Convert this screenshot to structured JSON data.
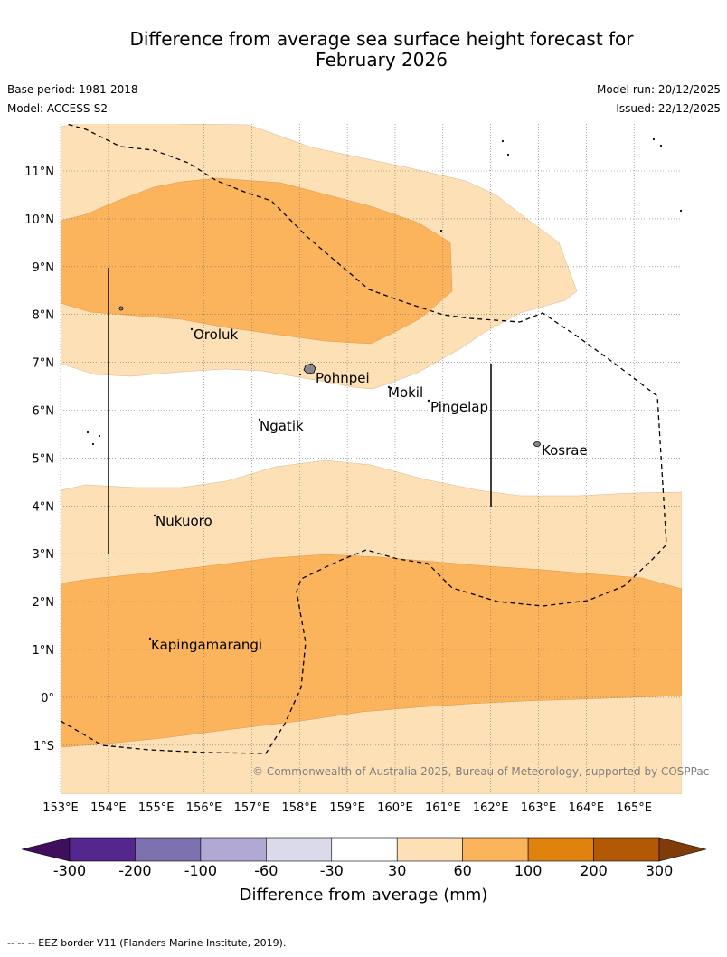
{
  "title_line1": "Difference from average sea surface height forecast for",
  "title_line2": "February 2026",
  "base_period": "Base period: 1981-2018",
  "model": "Model: ACCESS-S2",
  "model_run": "Model run: 20/12/2025",
  "issued": "Issued: 22/12/2025",
  "copyright": "© Commonwealth of Australia 2025, Bureau of Meteorology, supported by COSPPac",
  "lat_labels": [
    "11°N",
    "10°N",
    "9°N",
    "8°N",
    "7°N",
    "6°N",
    "5°N",
    "4°N",
    "3°N",
    "2°N",
    "1°N",
    "0°",
    "1°S"
  ],
  "lon_labels": [
    "153°E",
    "154°E",
    "155°E",
    "156°E",
    "157°E",
    "158°E",
    "159°E",
    "160°E",
    "161°E",
    "162°E",
    "163°E",
    "164°E",
    "165°E"
  ],
  "places": {
    "oroluk": "Oroluk",
    "pohnpei": "Pohnpei",
    "mokil": "Mokil",
    "pingelap": "Pingelap",
    "ngatik": "Ngatik",
    "kosrae": "Kosrae",
    "nukuoro": "Nukuoro",
    "kapingamarangi": "Kapingamarangi"
  },
  "legend": {
    "title": "Difference from average (mm)",
    "ticks": [
      "-300",
      "-200",
      "-100",
      "-60",
      "-30",
      "30",
      "60",
      "100",
      "200",
      "300"
    ],
    "colors": [
      "#3f0f5e",
      "#54278f",
      "#7e71b0",
      "#b1a9d4",
      "#dadaeb",
      "#ffffff",
      "#fde0b6",
      "#fbb45c",
      "#e0830e",
      "#b35805",
      "#7f3b08"
    ]
  },
  "footnote": "-- -- -- EEZ border V11 (Flanders Marine Institute, 2019)."
}
